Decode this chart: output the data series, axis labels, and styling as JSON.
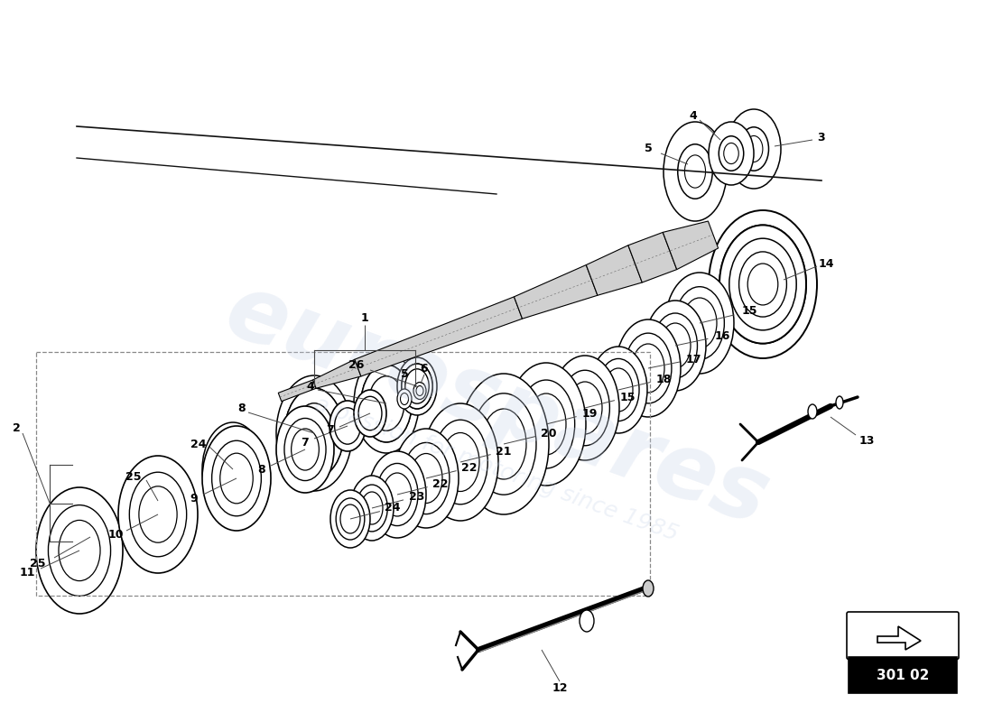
{
  "background_color": "#ffffff",
  "page_number": "301 02",
  "watermark_text": "eurospares",
  "watermark_sub": "a passion for motoring since 1985",
  "line_color": "#111111",
  "leader_color": "#444444",
  "shaft_color": "#cccccc",
  "yellow_fill": "#e8d870",
  "light_gray": "#e0e0e0",
  "mid_gray": "#aaaaaa"
}
